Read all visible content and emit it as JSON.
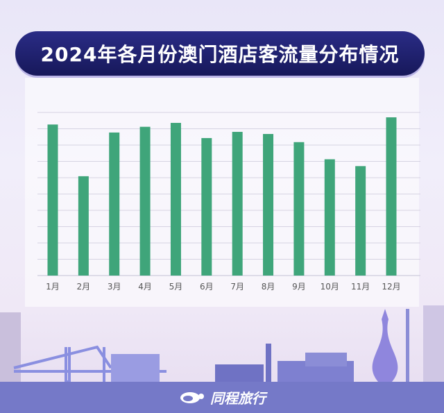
{
  "title": "2024年各月份澳门酒店客流量分布情况",
  "brand": "同程旅行",
  "colors": {
    "bar": "#3fa57a",
    "banner": "#1f2070",
    "footer": "#7579c8",
    "grid": "#d6d3e2"
  },
  "chart_data": {
    "type": "bar",
    "title": "2024年各月份澳门酒店客流量分布情况",
    "categories": [
      "1月",
      "2月",
      "3月",
      "4月",
      "5月",
      "6月",
      "7月",
      "8月",
      "9月",
      "10月",
      "11月",
      "12月"
    ],
    "values": [
      9.26,
      6.09,
      8.77,
      9.12,
      9.36,
      8.43,
      8.81,
      8.68,
      8.18,
      7.13,
      6.71,
      9.7
    ],
    "xlabel": "",
    "ylabel": "",
    "ylim": [
      0,
      10
    ],
    "grid": true,
    "y_tick_labels_shown": false
  }
}
